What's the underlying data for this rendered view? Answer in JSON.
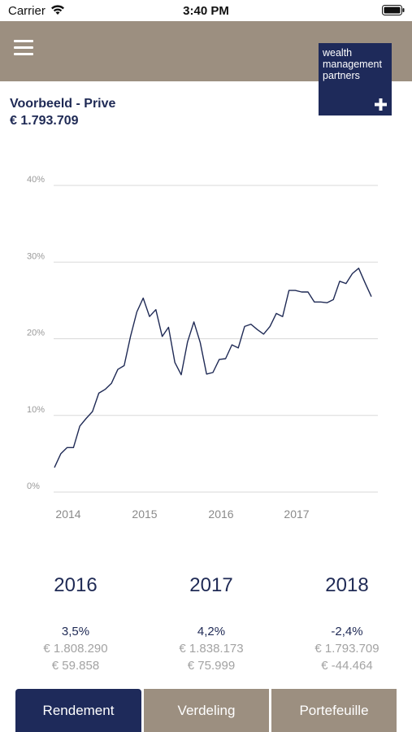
{
  "status_bar": {
    "carrier": "Carrier",
    "time": "3:40 PM"
  },
  "header": {
    "logo": {
      "line1": "wealth",
      "line2": "management",
      "line3": "partners"
    }
  },
  "portfolio": {
    "name": "Voorbeeld - Prive",
    "value": "€ 1.793.709"
  },
  "chart_data": {
    "type": "line",
    "title": "",
    "xlabel": "",
    "ylabel": "",
    "ylim": [
      0,
      40
    ],
    "y_ticks": [
      "0%",
      "10%",
      "20%",
      "30%",
      "40%"
    ],
    "x_ticks": [
      "2014",
      "2015",
      "2016",
      "2017"
    ],
    "grid": true,
    "series": [
      {
        "values": [
          3.2,
          5.0,
          5.8,
          5.8,
          8.6,
          9.6,
          10.5,
          12.9,
          13.4,
          14.2,
          16.0,
          16.5,
          20.3,
          23.5,
          25.3,
          22.9,
          23.8,
          20.3,
          21.5,
          16.9,
          15.3,
          19.6,
          22.2,
          19.5,
          15.4,
          15.6,
          17.3,
          17.4,
          19.2,
          18.8,
          21.6,
          21.9,
          21.2,
          20.6,
          21.6,
          23.3,
          22.9,
          26.3,
          26.3,
          26.1,
          26.1,
          24.8,
          24.8,
          24.7,
          25.1,
          27.5,
          27.2,
          28.5,
          29.2,
          27.3,
          25.5
        ]
      }
    ],
    "color": "#1f2a55"
  },
  "years": [
    {
      "year": "2016",
      "return": "3,5%",
      "value": "€ 1.808.290",
      "result": "€ 59.858"
    },
    {
      "year": "2017",
      "return": "4,2%",
      "value": "€ 1.838.173",
      "result": "€ 75.999"
    },
    {
      "year": "2018",
      "return": "-2,4%",
      "value": "€ 1.793.709",
      "result": "€ -44.464"
    }
  ],
  "tabs": [
    {
      "label": "Rendement",
      "active": true
    },
    {
      "label": "Verdeling",
      "active": false
    },
    {
      "label": "Portefeuille",
      "active": false
    }
  ],
  "colors": {
    "header": "#9c8f80",
    "navy": "#1e2a5a",
    "text_navy": "#1f2a55",
    "muted": "#a3a3a3"
  }
}
